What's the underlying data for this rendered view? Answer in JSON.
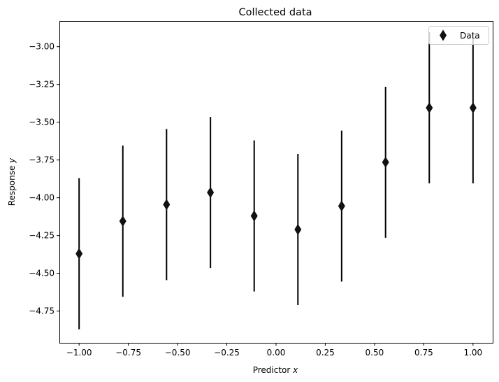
{
  "chart_data": {
    "type": "scatter",
    "title": "Collected data",
    "xlabel": "Predictor",
    "xlabel_var": "x",
    "ylabel": "Response",
    "ylabel_var": "y",
    "xlim": [
      -1.1,
      1.1
    ],
    "ylim": [
      -4.96,
      -2.83
    ],
    "grid": false,
    "legend_position": "top-right",
    "x_ticks": [
      -1.0,
      -0.75,
      -0.5,
      -0.25,
      0.0,
      0.25,
      0.5,
      0.75,
      1.0
    ],
    "x_tick_labels": [
      "−1.00",
      "−0.75",
      "−0.50",
      "−0.25",
      "0.00",
      "0.25",
      "0.50",
      "0.75",
      "1.00"
    ],
    "y_ticks": [
      -3.0,
      -3.25,
      -3.5,
      -3.75,
      -4.0,
      -4.25,
      -4.5,
      -4.75
    ],
    "y_tick_labels": [
      "−3.00",
      "−3.25",
      "−3.50",
      "−3.75",
      "−4.00",
      "−4.25",
      "−4.50",
      "−4.75"
    ],
    "series": [
      {
        "name": "Data",
        "marker": "thin_diamond",
        "color": "#111111",
        "error_color": "#000000",
        "x": [
          -1.0,
          -0.778,
          -0.556,
          -0.333,
          -0.111,
          0.111,
          0.333,
          0.556,
          0.778,
          1.0
        ],
        "y": [
          -4.37,
          -4.155,
          -4.045,
          -3.965,
          -4.12,
          -4.21,
          -4.055,
          -3.765,
          -3.405,
          -3.405
        ],
        "yerr": [
          0.5,
          0.5,
          0.5,
          0.5,
          0.5,
          0.5,
          0.5,
          0.5,
          0.5,
          0.5
        ]
      }
    ]
  }
}
